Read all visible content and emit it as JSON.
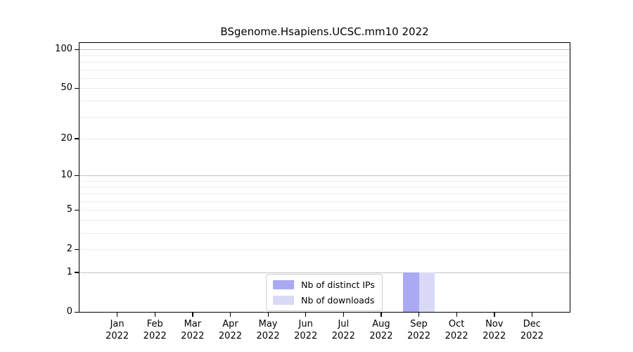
{
  "chart_data": {
    "type": "bar",
    "title": "BSgenome.Hsapiens.UCSC.mm10 2022",
    "xlabel": "",
    "ylabel": "",
    "x_tick_year": "2022",
    "categories": [
      "Jan",
      "Feb",
      "Mar",
      "Apr",
      "May",
      "Jun",
      "Jul",
      "Aug",
      "Sep",
      "Oct",
      "Nov",
      "Dec"
    ],
    "series": [
      {
        "name": "Nb of distinct IPs",
        "color": "#a9a9f4",
        "values": [
          0,
          0,
          0,
          0,
          0,
          0,
          0,
          0,
          1,
          0,
          0,
          0
        ]
      },
      {
        "name": "Nb of downloads",
        "color": "#d9d9f7",
        "values": [
          0,
          0,
          0,
          0,
          0,
          0,
          0,
          0,
          1,
          0,
          0,
          0
        ]
      }
    ],
    "y_scale": "log1p",
    "y_ticks": [
      0,
      1,
      2,
      5,
      10,
      20,
      50,
      100
    ],
    "ylim": [
      0,
      112
    ],
    "minor_gridlines": [
      2,
      3,
      4,
      5,
      6,
      7,
      8,
      9,
      20,
      30,
      40,
      50,
      60,
      70,
      80,
      90
    ],
    "major_gridlines": [
      1,
      10,
      100
    ],
    "grid": true,
    "legend_position": "bottom-center"
  },
  "colors": {
    "background": "#ffffff",
    "spine": "#000000",
    "major_gridline": "#c4c4c4",
    "minor_gridline": "#ececec",
    "legend_border": "#cccccc",
    "bar_distinct_ips": "#a9a9f4",
    "bar_downloads": "#d9d9f7"
  }
}
